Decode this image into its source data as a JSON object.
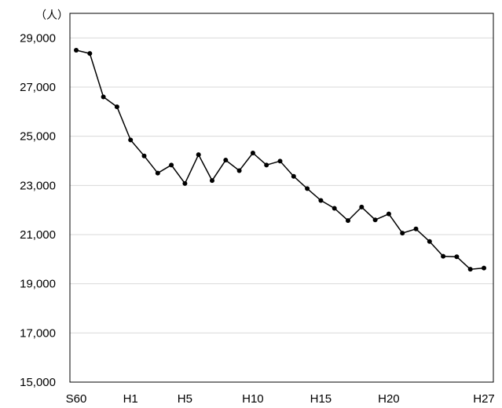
{
  "chart_data": {
    "type": "line",
    "unit_label": "（人）",
    "ylim": [
      15000,
      30000
    ],
    "y_ticks": [
      15000,
      17000,
      19000,
      21000,
      23000,
      25000,
      27000,
      29000
    ],
    "y_tick_labels": [
      "15,000",
      "17,000",
      "19,000",
      "21,000",
      "23,000",
      "25,000",
      "27,000",
      "29,000"
    ],
    "x_tick_labels": [
      {
        "index": 0,
        "label": "S60"
      },
      {
        "index": 4,
        "label": "H1"
      },
      {
        "index": 8,
        "label": "H5"
      },
      {
        "index": 13,
        "label": "H10"
      },
      {
        "index": 18,
        "label": "H15"
      },
      {
        "index": 23,
        "label": "H20"
      },
      {
        "index": 30,
        "label": "H27"
      }
    ],
    "grid": true,
    "legend": "none",
    "series": [
      {
        "values": [
          28500,
          28370,
          26600,
          26200,
          24850,
          24200,
          23500,
          23830,
          23080,
          24250,
          23200,
          24030,
          23600,
          24320,
          23830,
          23990,
          23370,
          22870,
          22390,
          22070,
          21570,
          22120,
          21600,
          21840,
          21060,
          21230,
          20720,
          20120,
          20100,
          19590,
          19640
        ],
        "color": "#000000"
      }
    ]
  }
}
